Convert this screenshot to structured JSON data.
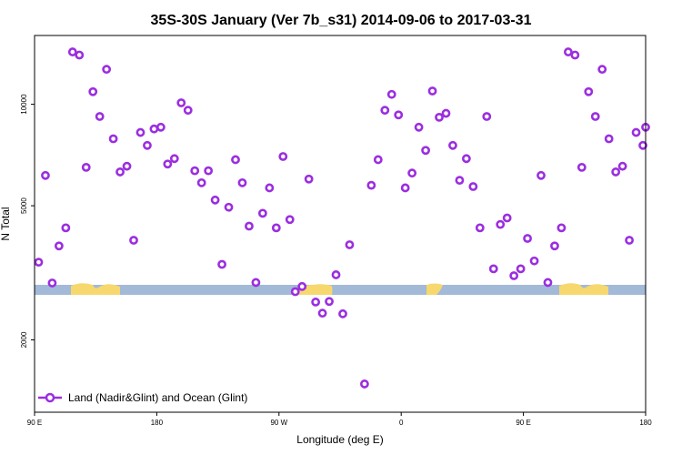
{
  "colors": {
    "marker": "#9b2ee0",
    "ocean": "#a2b9d8",
    "land": "#f7d86e"
  },
  "chart_data": {
    "type": "scatter",
    "title": "35S-30S January (Ver 7b_s31)   2014-09-06 to 2017-03-31",
    "xlabel": "Longitude (deg E)",
    "ylabel": "N Total",
    "yscale": "log",
    "xlim": [
      90,
      540
    ],
    "ylim": [
      1220,
      16000
    ],
    "x_ticks": [
      {
        "value": 90,
        "label": "90 E"
      },
      {
        "value": 180,
        "label": "180"
      },
      {
        "value": 270,
        "label": "90 W"
      },
      {
        "value": 360,
        "label": "0"
      },
      {
        "value": 450,
        "label": "90 E"
      },
      {
        "value": 540,
        "label": "180"
      }
    ],
    "y_ticks": [
      {
        "value": 2000,
        "label": "2000"
      },
      {
        "value": 5000,
        "label": "5000"
      },
      {
        "value": 10000,
        "label": "10000"
      }
    ],
    "legend": {
      "label": "Land (Nadir&Glint) and Ocean (Glint)",
      "position": "bottom-left"
    },
    "series": [
      {
        "name": "Land (Nadir&Glint) and Ocean (Glint)",
        "points": [
          {
            "x": 93,
            "y": 3400
          },
          {
            "x": 98,
            "y": 6150
          },
          {
            "x": 103,
            "y": 2950
          },
          {
            "x": 108,
            "y": 3800
          },
          {
            "x": 113,
            "y": 4300
          },
          {
            "x": 118,
            "y": 14300
          },
          {
            "x": 123,
            "y": 14000
          },
          {
            "x": 128,
            "y": 6500
          },
          {
            "x": 133,
            "y": 10900
          },
          {
            "x": 138,
            "y": 9200
          },
          {
            "x": 143,
            "y": 12700
          },
          {
            "x": 148,
            "y": 7900
          },
          {
            "x": 153,
            "y": 6300
          },
          {
            "x": 158,
            "y": 6550
          },
          {
            "x": 163,
            "y": 3950
          },
          {
            "x": 168,
            "y": 8250
          },
          {
            "x": 173,
            "y": 7550
          },
          {
            "x": 178,
            "y": 8450
          },
          {
            "x": 183,
            "y": 8550
          },
          {
            "x": 188,
            "y": 6650
          },
          {
            "x": 193,
            "y": 6900
          },
          {
            "x": 198,
            "y": 10100
          },
          {
            "x": 203,
            "y": 9600
          },
          {
            "x": 208,
            "y": 6350
          },
          {
            "x": 213,
            "y": 5850
          },
          {
            "x": 218,
            "y": 6350
          },
          {
            "x": 223,
            "y": 5200
          },
          {
            "x": 228,
            "y": 3350
          },
          {
            "x": 233,
            "y": 4950
          },
          {
            "x": 238,
            "y": 6850
          },
          {
            "x": 243,
            "y": 5850
          },
          {
            "x": 248,
            "y": 4350
          },
          {
            "x": 253,
            "y": 2960
          },
          {
            "x": 258,
            "y": 4750
          },
          {
            "x": 263,
            "y": 5650
          },
          {
            "x": 268,
            "y": 4300
          },
          {
            "x": 273,
            "y": 7000
          },
          {
            "x": 278,
            "y": 4550
          },
          {
            "x": 282,
            "y": 2780
          },
          {
            "x": 287,
            "y": 2880
          },
          {
            "x": 292,
            "y": 6000
          },
          {
            "x": 297,
            "y": 2590
          },
          {
            "x": 302,
            "y": 2400
          },
          {
            "x": 307,
            "y": 2600
          },
          {
            "x": 312,
            "y": 3120
          },
          {
            "x": 317,
            "y": 2390
          },
          {
            "x": 322,
            "y": 3830
          },
          {
            "x": 333,
            "y": 1480
          },
          {
            "x": 338,
            "y": 5750
          },
          {
            "x": 343,
            "y": 6850
          },
          {
            "x": 348,
            "y": 9600
          },
          {
            "x": 353,
            "y": 10700
          },
          {
            "x": 358,
            "y": 9300
          },
          {
            "x": 363,
            "y": 5650
          },
          {
            "x": 368,
            "y": 6250
          },
          {
            "x": 373,
            "y": 8550
          },
          {
            "x": 378,
            "y": 7300
          },
          {
            "x": 383,
            "y": 10950
          },
          {
            "x": 388,
            "y": 9150
          },
          {
            "x": 393,
            "y": 9400
          },
          {
            "x": 398,
            "y": 7550
          },
          {
            "x": 403,
            "y": 5950
          },
          {
            "x": 408,
            "y": 6900
          },
          {
            "x": 413,
            "y": 5700
          },
          {
            "x": 418,
            "y": 4300
          },
          {
            "x": 423,
            "y": 9200
          },
          {
            "x": 428,
            "y": 3250
          },
          {
            "x": 433,
            "y": 4400
          },
          {
            "x": 438,
            "y": 4600
          },
          {
            "x": 443,
            "y": 3100
          },
          {
            "x": 448,
            "y": 3250
          },
          {
            "x": 453,
            "y": 4000
          },
          {
            "x": 458,
            "y": 3430
          },
          {
            "x": 463,
            "y": 6150
          },
          {
            "x": 468,
            "y": 2960
          },
          {
            "x": 473,
            "y": 3800
          },
          {
            "x": 478,
            "y": 4300
          },
          {
            "x": 483,
            "y": 14300
          },
          {
            "x": 488,
            "y": 14000
          },
          {
            "x": 493,
            "y": 6500
          },
          {
            "x": 498,
            "y": 10900
          },
          {
            "x": 503,
            "y": 9200
          },
          {
            "x": 508,
            "y": 12700
          },
          {
            "x": 513,
            "y": 7900
          },
          {
            "x": 518,
            "y": 6300
          },
          {
            "x": 523,
            "y": 6550
          },
          {
            "x": 528,
            "y": 3950
          },
          {
            "x": 533,
            "y": 8250
          },
          {
            "x": 538,
            "y": 7550
          },
          {
            "x": 540,
            "y": 8550
          }
        ]
      }
    ]
  }
}
